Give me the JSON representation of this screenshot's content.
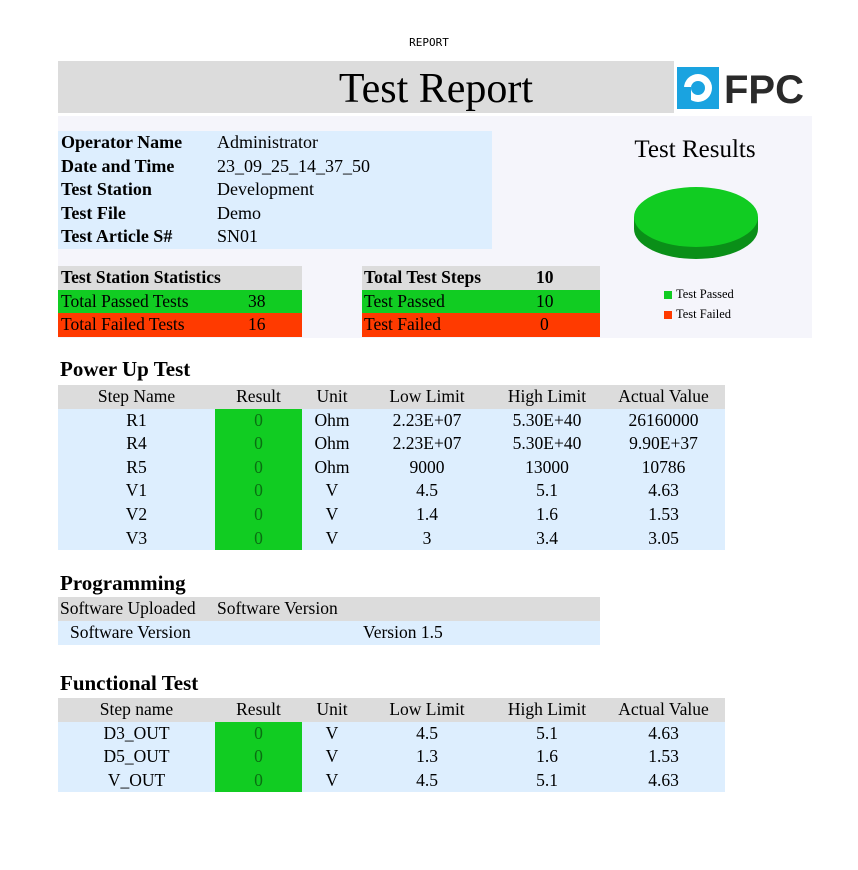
{
  "sheet_name": "REPORT",
  "title": "Test Report",
  "logo_text": "FPC",
  "info": [
    {
      "key": "Operator Name",
      "value": "Administrator"
    },
    {
      "key": "Date and Time",
      "value": "23_09_25_14_37_50"
    },
    {
      "key": "Test Station",
      "value": "Development"
    },
    {
      "key": "Test File",
      "value": "Demo"
    },
    {
      "key": "Test Article S#",
      "value": "SN01"
    }
  ],
  "station_stats": {
    "header": "Test Station Statistics",
    "passed_label": "Total Passed Tests",
    "passed_value": "38",
    "failed_label": "Total Failed Tests",
    "failed_value": "16"
  },
  "steps_stats": {
    "header": "Total Test Steps",
    "header_value": "10",
    "passed_label": "Test Passed",
    "passed_value": "10",
    "failed_label": "Test Failed",
    "failed_value": "0"
  },
  "results_chart": {
    "title": "Test Results",
    "legend_passed": "Test Passed",
    "legend_failed": "Test Failed",
    "color_passed": "#11cc22",
    "color_failed": "#ff3a00"
  },
  "power_up": {
    "title": "Power Up Test",
    "headers": [
      "Step Name",
      "Result",
      "Unit",
      "Low Limit",
      "High Limit",
      "Actual Value"
    ],
    "rows": [
      [
        "R1",
        "0",
        "Ohm",
        "2.23E+07",
        "5.30E+40",
        "26160000"
      ],
      [
        "R4",
        "0",
        "Ohm",
        "2.23E+07",
        "5.30E+40",
        "9.90E+37"
      ],
      [
        "R5",
        "0",
        "Ohm",
        "9000",
        "13000",
        "10786"
      ],
      [
        "V1",
        "0",
        "V",
        "4.5",
        "5.1",
        "4.63"
      ],
      [
        "V2",
        "0",
        "V",
        "1.4",
        "1.6",
        "1.53"
      ],
      [
        "V3",
        "0",
        "V",
        "3",
        "3.4",
        "3.05"
      ]
    ]
  },
  "programming": {
    "title": "Programming",
    "header_col1": "Software Uploaded",
    "header_col2": "Software Version",
    "row_label": "Software Version",
    "row_value": "Version 1.5"
  },
  "functional": {
    "title": "Functional Test",
    "headers": [
      "Step name",
      "Result",
      "Unit",
      "Low Limit",
      "High Limit",
      "Actual Value"
    ],
    "rows": [
      [
        "D3_OUT",
        "0",
        "V",
        "4.5",
        "5.1",
        "4.63"
      ],
      [
        "D5_OUT",
        "0",
        "V",
        "1.3",
        "1.6",
        "1.53"
      ],
      [
        "V_OUT",
        "0",
        "V",
        "4.5",
        "5.1",
        "4.63"
      ]
    ]
  }
}
